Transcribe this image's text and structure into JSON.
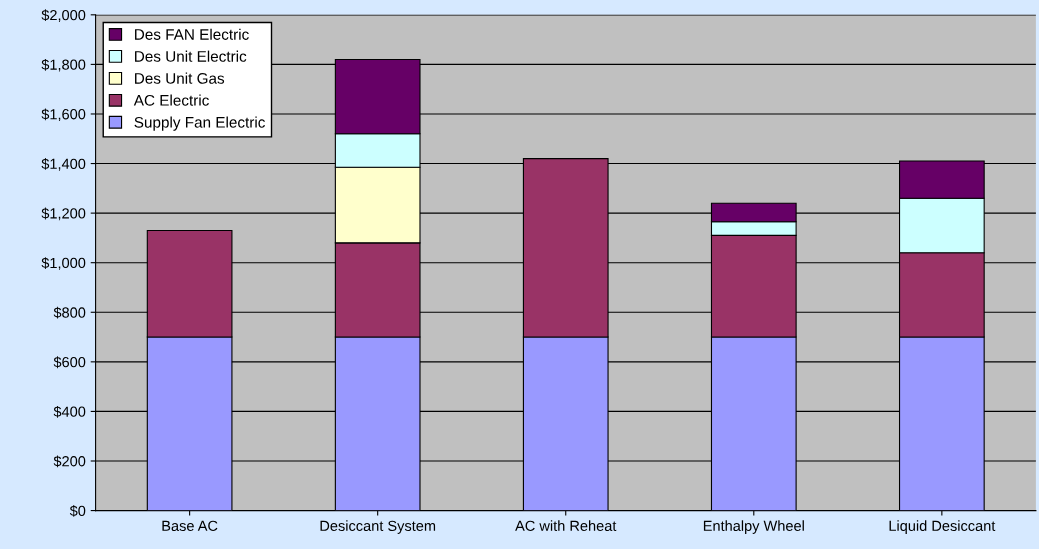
{
  "chart_data": {
    "type": "bar",
    "stacked": true,
    "categories": [
      "Base AC",
      "Desiccant System",
      "AC with Reheat",
      "Enthalpy Wheel",
      "Liquid Desiccant"
    ],
    "series": [
      {
        "name": "Supply Fan Electric",
        "color": "#9999ff",
        "values": [
          700,
          700,
          700,
          700,
          700
        ]
      },
      {
        "name": "AC Electric",
        "color": "#993366",
        "values": [
          430,
          380,
          720,
          410,
          340
        ]
      },
      {
        "name": "Des Unit Gas",
        "color": "#ffffcc",
        "values": [
          null,
          305,
          null,
          null,
          null
        ]
      },
      {
        "name": "Des Unit Electric",
        "color": "#ccffff",
        "values": [
          null,
          135,
          null,
          55,
          220
        ]
      },
      {
        "name": "Des FAN Electric",
        "color": "#660066",
        "values": [
          null,
          300,
          null,
          75,
          150
        ]
      }
    ],
    "ylim": [
      0,
      2000
    ],
    "yticks": [
      {
        "value": 0,
        "label": "$0"
      },
      {
        "value": 200,
        "label": "$200"
      },
      {
        "value": 400,
        "label": "$400"
      },
      {
        "value": 600,
        "label": "$600"
      },
      {
        "value": 800,
        "label": "$800"
      },
      {
        "value": 1000,
        "label": "$1,000"
      },
      {
        "value": 1200,
        "label": "$1,200"
      },
      {
        "value": 1400,
        "label": "$1,400"
      },
      {
        "value": 1600,
        "label": "$1,600"
      },
      {
        "value": 1800,
        "label": "$1,800"
      },
      {
        "value": 2000,
        "label": "$2,000"
      }
    ],
    "grid": "y",
    "legend": "top left"
  }
}
